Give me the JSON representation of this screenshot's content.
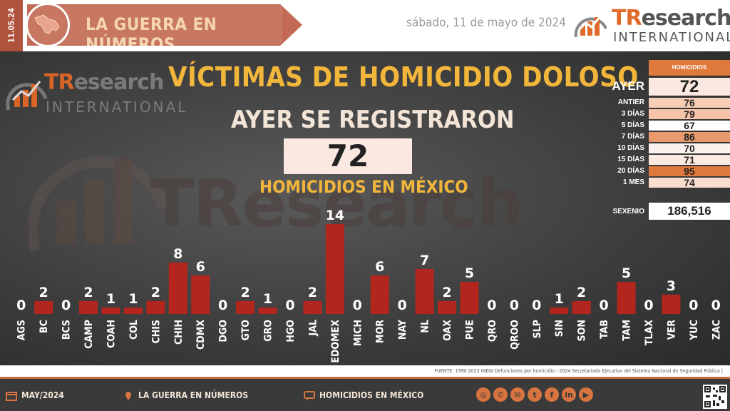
{
  "header": {
    "date_tab": "11.05.24",
    "banner": "LA GUERRA EN NÚMEROS",
    "date": "sábado, 11 de mayo de 2024",
    "logo_tr": "TR",
    "logo_rest": "esearch",
    "logo_int": "INTERNATIONAL"
  },
  "main": {
    "title": "VÍCTIMAS DE HOMICIDIO DOLOSO",
    "subtitle": "AYER SE REGISTRARON",
    "count": "72",
    "caption": "HOMICIDIOS EN MÉXICO",
    "watermark": "TResearch"
  },
  "table": {
    "header": "HOMICIDIOS",
    "rows": [
      {
        "label": "AYER",
        "value": "72",
        "bg": "#fbe8e0",
        "big": true
      },
      {
        "label": "ANTIER",
        "value": "76",
        "bg": "#f7cdb5"
      },
      {
        "label": "3 DÍAS",
        "value": "79",
        "bg": "#f5c3a8"
      },
      {
        "label": "5 DÍAS",
        "value": "67",
        "bg": "#ffffff"
      },
      {
        "label": "7 DÍAS",
        "value": "86",
        "bg": "#e99a6d"
      },
      {
        "label": "10 DÍAS",
        "value": "70",
        "bg": "#fdf3ee"
      },
      {
        "label": "15 DÍAS",
        "value": "71",
        "bg": "#fbeae2"
      },
      {
        "label": "20 DÍAS",
        "value": "95",
        "bg": "#e07a3c"
      },
      {
        "label": "1 MES",
        "value": "74",
        "bg": "#f9ddcf"
      }
    ],
    "sexenio_label": "SEXENIO",
    "sexenio_value": "186,516"
  },
  "chart_data": {
    "type": "bar",
    "categories": [
      "AGS",
      "BC",
      "BCS",
      "CAMP",
      "COAH",
      "COL",
      "CHIS",
      "CHIH",
      "CDMX",
      "DGO",
      "GTO",
      "GRO",
      "HGO",
      "JAL",
      "EDOMEX",
      "MICH",
      "MOR",
      "NAY",
      "NL",
      "OAX",
      "PUE",
      "QRO",
      "QROO",
      "SLP",
      "SIN",
      "SON",
      "TAB",
      "TAM",
      "TLAX",
      "VER",
      "YUC",
      "ZAC"
    ],
    "values": [
      0,
      2,
      0,
      2,
      1,
      1,
      2,
      8,
      6,
      0,
      2,
      1,
      0,
      2,
      14,
      0,
      6,
      0,
      7,
      2,
      5,
      0,
      0,
      0,
      1,
      2,
      0,
      5,
      0,
      3,
      0,
      0
    ],
    "ylim": [
      0,
      14
    ],
    "bar_color": "#b3261e"
  },
  "source": "FUENTE: 1990-2023 INEGI Defunciones por homicidio - 2024 Secretariado Ejecutivo del Sistema Nacional de Seguridad Pública |",
  "footer": {
    "month": "MAY/2024",
    "section": "LA GUERRA EN NÚMEROS",
    "topic": "HOMICIDIOS EN MÉXICO",
    "social": [
      {
        "name": "web-icon",
        "glyph": "◎"
      },
      {
        "name": "phone-icon",
        "glyph": "✆"
      },
      {
        "name": "mail-icon",
        "glyph": "✉"
      },
      {
        "name": "twitter-icon",
        "glyph": "t"
      },
      {
        "name": "facebook-icon",
        "glyph": "f"
      },
      {
        "name": "linkedin-icon",
        "glyph": "in"
      },
      {
        "name": "youtube-icon",
        "glyph": "▶"
      }
    ]
  }
}
